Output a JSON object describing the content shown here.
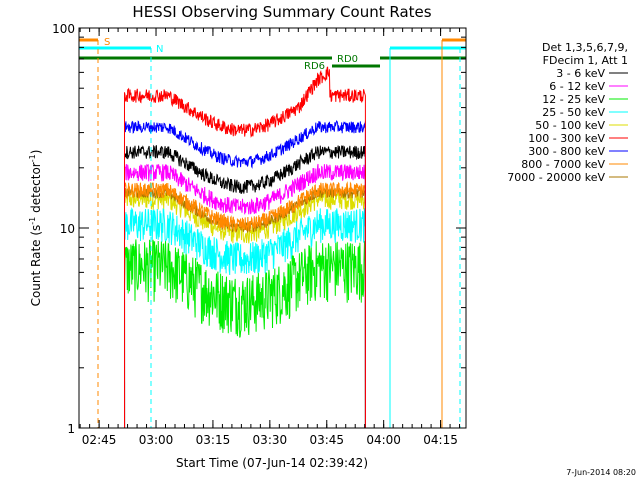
{
  "chart_data": {
    "type": "line",
    "title": "HESSI Observing Summary Count Rates",
    "xlabel": "Start Time (07-Jun-14 02:39:42)",
    "ylabel_main": "Count Rate (s",
    "ylabel_sup1": "-1",
    "ylabel_mid": " detector",
    "ylabel_sup2": "-1",
    "ylabel_end": ")",
    "yscale": "log",
    "ylim": [
      1,
      100
    ],
    "xlim_minutes": [
      0,
      102
    ],
    "x_tick_labels": [
      "02:45",
      "03:00",
      "03:15",
      "03:30",
      "03:45",
      "04:00",
      "04:15"
    ],
    "x_tick_minutes": [
      5.3,
      20.3,
      35.3,
      50.3,
      65.3,
      80.3,
      95.3
    ],
    "y_tick_labels": [
      "1",
      "10",
      "100"
    ],
    "y_tick_values": [
      1,
      10,
      100
    ],
    "legend_title": [
      "Det 1,3,5,6,7,9,",
      "FDecim 1, Att 1"
    ],
    "legend_placement": "right",
    "series": [
      {
        "name": "3 - 6 keV",
        "color": "#000000",
        "base": 24,
        "amp": 0.08
      },
      {
        "name": "6 - 12 keV",
        "color": "#ff00ff",
        "base": 19,
        "amp": 0.1
      },
      {
        "name": "12 - 25 keV",
        "color": "#00ee00",
        "base": 6.5,
        "amp": 0.35
      },
      {
        "name": "25 - 50 keV",
        "color": "#00ffff",
        "base": 10.5,
        "amp": 0.2
      },
      {
        "name": "50 - 100 keV",
        "color": "#dddd00",
        "base": 14,
        "amp": 0.12
      },
      {
        "name": "100 - 300 keV",
        "color": "#ff0000",
        "base": 46,
        "amp": 0.08
      },
      {
        "name": "300 - 800 keV",
        "color": "#0000ff",
        "base": 32,
        "amp": 0.07
      },
      {
        "name": "800 - 7000 keV",
        "color": "#ff8800",
        "base": 15.5,
        "amp": 0.09
      },
      {
        "name": "7000 - 20000 keV",
        "color": "#aa7700",
        "base": 15,
        "amp": 0.06
      }
    ],
    "data_window_minutes": [
      12,
      75.5
    ],
    "flags": [
      {
        "label": "S",
        "color": "#ff8800"
      },
      {
        "label": "N",
        "color": "#00ffff"
      },
      {
        "label": "RD6",
        "color": "#007700"
      },
      {
        "label": "RD0",
        "color": "#007700"
      }
    ],
    "timestamp": "7-Jun-2014 08:20"
  }
}
